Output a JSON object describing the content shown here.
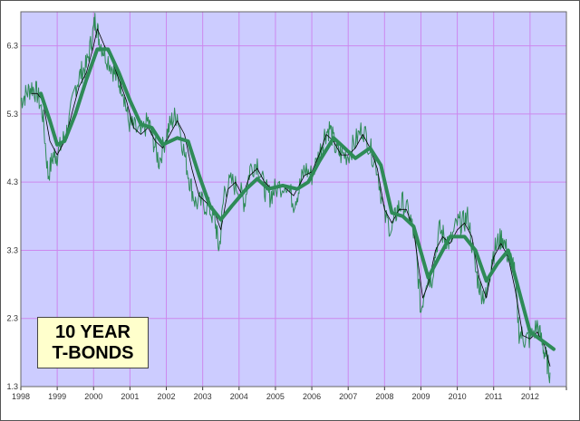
{
  "chart_data": {
    "type": "line",
    "title": "",
    "xlabel": "",
    "ylabel": "",
    "xlim": [
      1998,
      2013
    ],
    "ylim": [
      1.3,
      6.8
    ],
    "x_ticks": [
      "1998",
      "1999",
      "2000",
      "2001",
      "2002",
      "2003",
      "2004",
      "2005",
      "2006",
      "2007",
      "2008",
      "2009",
      "2010",
      "2011",
      "2012"
    ],
    "y_ticks": [
      "1.3",
      "2.3",
      "3.3",
      "4.3",
      "5.3",
      "6.3"
    ],
    "grid": true,
    "background_color": "#ccccff",
    "grid_color": "#cc88ee",
    "annotation": {
      "line1": "10 YEAR",
      "line2": "T-BONDS",
      "fill": "#ffffcc"
    },
    "series": [
      {
        "style": "thin-green",
        "color": "#2e8b57",
        "x": [
          1998.0,
          1998.15,
          1998.3,
          1998.45,
          1998.6,
          1998.75,
          1998.9,
          1999.0,
          1999.15,
          1999.3,
          1999.5,
          1999.65,
          1999.8,
          1999.95,
          2000.05,
          2000.15,
          2000.3,
          2000.5,
          2000.65,
          2000.8,
          2000.95,
          2001.1,
          2001.3,
          2001.5,
          2001.65,
          2001.8,
          2002.0,
          2002.15,
          2002.3,
          2002.5,
          2002.65,
          2002.8,
          2003.0,
          2003.2,
          2003.35,
          2003.45,
          2003.6,
          2003.8,
          2004.0,
          2004.15,
          2004.3,
          2004.5,
          2004.7,
          2004.85,
          2005.0,
          2005.3,
          2005.5,
          2005.65,
          2005.8,
          2006.0,
          2006.2,
          2006.35,
          2006.5,
          2006.65,
          2006.8,
          2007.0,
          2007.2,
          2007.4,
          2007.6,
          2007.8,
          2008.0,
          2008.2,
          2008.35,
          2008.5,
          2008.7,
          2008.85,
          2009.0,
          2009.15,
          2009.3,
          2009.5,
          2009.65,
          2009.8,
          2010.0,
          2010.15,
          2010.3,
          2010.5,
          2010.65,
          2010.8,
          2010.95,
          2011.1,
          2011.25,
          2011.4,
          2011.55,
          2011.7,
          2011.85,
          2012.0,
          2012.2,
          2012.35,
          2012.45,
          2012.55
        ],
        "y": [
          5.5,
          5.6,
          5.7,
          5.6,
          5.3,
          4.4,
          4.7,
          4.7,
          4.9,
          5.1,
          5.7,
          5.9,
          6.0,
          6.4,
          6.7,
          6.4,
          6.2,
          6.0,
          5.8,
          5.7,
          5.2,
          5.1,
          5.0,
          5.2,
          4.9,
          4.6,
          5.0,
          5.2,
          5.3,
          4.7,
          4.3,
          4.0,
          4.0,
          3.9,
          3.7,
          3.3,
          4.2,
          4.3,
          4.2,
          4.0,
          4.5,
          4.6,
          4.2,
          4.1,
          4.2,
          4.3,
          4.0,
          4.2,
          4.5,
          4.4,
          4.7,
          5.0,
          5.1,
          4.8,
          4.7,
          4.7,
          4.9,
          5.1,
          4.8,
          4.5,
          3.8,
          3.6,
          3.9,
          4.0,
          3.8,
          3.4,
          2.4,
          2.9,
          2.9,
          3.6,
          3.5,
          3.4,
          3.7,
          3.7,
          3.8,
          3.0,
          2.7,
          2.6,
          3.2,
          3.4,
          3.5,
          3.2,
          3.1,
          2.1,
          2.0,
          2.0,
          2.2,
          1.9,
          1.7,
          1.5
        ]
      },
      {
        "style": "thin-black",
        "color": "#000000",
        "x": [
          1998.3,
          1998.45,
          1998.6,
          1998.8,
          1999.0,
          1999.2,
          1999.4,
          1999.6,
          1999.8,
          2000.0,
          2000.1,
          2000.3,
          2000.5,
          2000.7,
          2000.9,
          2001.1,
          2001.3,
          2001.5,
          2001.7,
          2001.9,
          2002.1,
          2002.3,
          2002.5,
          2002.7,
          2002.9,
          2003.1,
          2003.3,
          2003.5,
          2003.7,
          2003.9,
          2004.1,
          2004.3,
          2004.5,
          2004.7,
          2004.9,
          2005.2,
          2005.5,
          2005.8,
          2006.0,
          2006.2,
          2006.4,
          2006.6,
          2006.8,
          2007.0,
          2007.2,
          2007.4,
          2007.6,
          2007.8,
          2008.0,
          2008.2,
          2008.4,
          2008.6,
          2008.8,
          2009.05,
          2009.2,
          2009.4,
          2009.6,
          2009.8,
          2010.0,
          2010.2,
          2010.4,
          2010.6,
          2010.8,
          2011.0,
          2011.2,
          2011.4,
          2011.6,
          2011.8,
          2012.0,
          2012.2,
          2012.4,
          2012.55
        ],
        "y": [
          5.6,
          5.6,
          5.5,
          4.9,
          4.7,
          4.9,
          5.3,
          5.7,
          5.9,
          6.3,
          6.55,
          6.3,
          6.1,
          5.8,
          5.5,
          5.1,
          5.0,
          5.1,
          4.9,
          4.8,
          5.0,
          5.2,
          5.0,
          4.5,
          4.1,
          4.0,
          3.9,
          3.6,
          4.2,
          4.3,
          4.1,
          4.4,
          4.5,
          4.3,
          4.2,
          4.25,
          4.1,
          4.4,
          4.45,
          4.7,
          5.0,
          4.9,
          4.7,
          4.7,
          4.8,
          5.0,
          4.8,
          4.5,
          3.9,
          3.7,
          3.9,
          3.9,
          3.6,
          2.6,
          2.8,
          3.3,
          3.5,
          3.4,
          3.6,
          3.7,
          3.5,
          2.9,
          2.6,
          3.2,
          3.4,
          3.2,
          2.7,
          2.05,
          2.0,
          2.1,
          1.9,
          1.6
        ]
      },
      {
        "style": "thick-green",
        "color": "#2e8b57",
        "x": [
          1998.55,
          1998.8,
          1999.0,
          1999.2,
          1999.5,
          1999.8,
          2000.1,
          2000.4,
          2000.7,
          2001.0,
          2001.3,
          2001.6,
          2001.9,
          2002.3,
          2002.6,
          2002.9,
          2003.2,
          2003.5,
          2003.8,
          2004.2,
          2004.5,
          2004.8,
          2005.2,
          2005.6,
          2005.9,
          2006.2,
          2006.6,
          2006.9,
          2007.2,
          2007.6,
          2007.9,
          2008.2,
          2008.5,
          2008.8,
          2009.2,
          2009.5,
          2009.8,
          2010.2,
          2010.5,
          2010.8,
          2011.1,
          2011.4,
          2011.7,
          2012.0,
          2012.4,
          2012.65
        ],
        "y": [
          5.6,
          5.2,
          4.85,
          4.9,
          5.3,
          5.8,
          6.25,
          6.25,
          5.9,
          5.5,
          5.15,
          5.1,
          4.85,
          4.95,
          4.9,
          4.4,
          3.95,
          3.75,
          3.95,
          4.2,
          4.35,
          4.2,
          4.25,
          4.2,
          4.3,
          4.6,
          4.95,
          4.8,
          4.65,
          4.8,
          4.55,
          3.85,
          3.8,
          3.65,
          2.9,
          3.2,
          3.5,
          3.5,
          3.3,
          2.85,
          3.1,
          3.3,
          2.7,
          2.1,
          1.95,
          1.85
        ]
      }
    ]
  }
}
